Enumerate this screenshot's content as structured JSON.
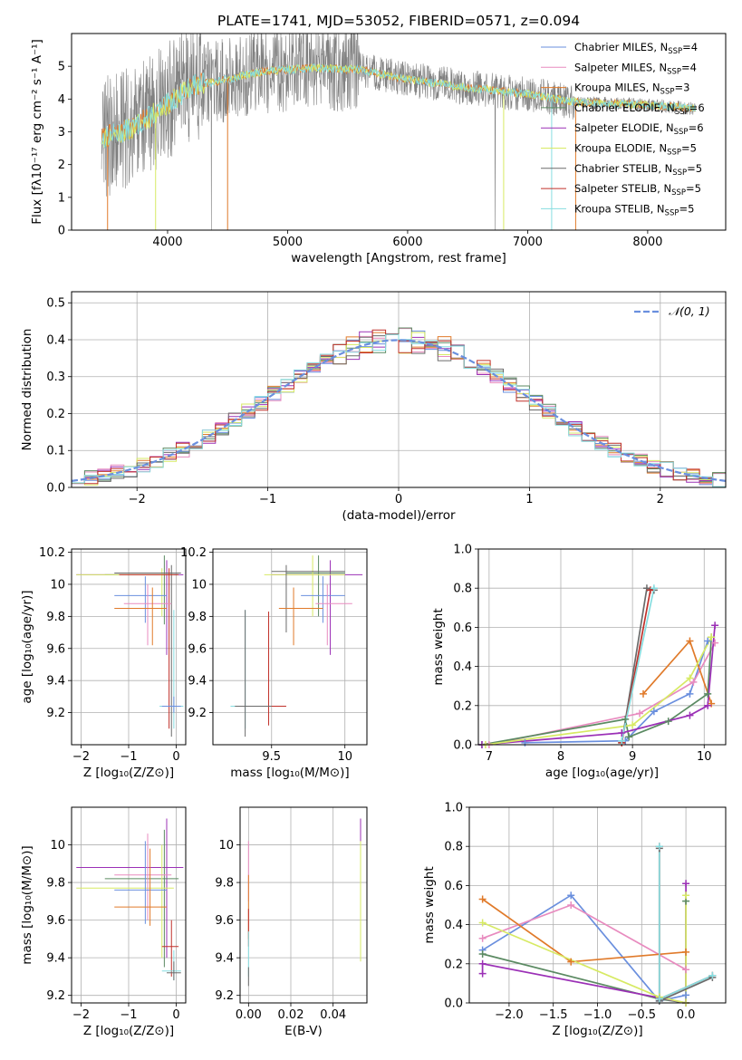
{
  "title": "PLATE=1741, MJD=53052, FIBERID=0571, z=0.094",
  "colors": {
    "Chabrier MILES": "#6a8fde",
    "Salpeter MILES": "#e88bbf",
    "Kroupa MILES": "#e07a2a",
    "Chabrier ELODIE": "#5b8a62",
    "Salpeter ELODIE": "#9b30b6",
    "Kroupa ELODIE": "#d7ea64",
    "Chabrier STELIB": "#6b6b6b",
    "Salpeter STELIB": "#c0302a",
    "Kroupa STELIB": "#86dde0",
    "gaussian": "#6a8fde",
    "spectrum_grey": "#808080"
  },
  "chart_data": [
    {
      "id": "spectrum",
      "type": "line",
      "xlabel": "wavelength [Angstrom, rest frame]",
      "ylabel": "Flux [fλ10⁻¹⁷ erg cm⁻² s⁻¹ A⁻¹]",
      "xlim": [
        3200,
        8650
      ],
      "ylim": [
        0,
        6
      ],
      "xticks": [
        4000,
        5000,
        6000,
        7000,
        8000
      ],
      "yticks": [
        0,
        1,
        2,
        3,
        4,
        5
      ],
      "legend": [
        "Chabrier MILES, NSSP=4",
        "Salpeter MILES, NSSP=4",
        "Kroupa MILES, NSSP=3",
        "Chabrier ELODIE, NSSP=6",
        "Salpeter ELODIE, NSSP=6",
        "Kroupa ELODIE, NSSP=5",
        "Chabrier STELIB, NSSP=5",
        "Salpeter STELIB, NSSP=5",
        "Kroupa STELIB, NSSP=5"
      ],
      "legend_keys": [
        "Chabrier MILES",
        "Salpeter MILES",
        "Kroupa MILES",
        "Chabrier ELODIE",
        "Salpeter ELODIE",
        "Kroupa ELODIE",
        "Chabrier STELIB",
        "Salpeter STELIB",
        "Kroupa STELIB"
      ],
      "legend_placement": "right",
      "data_range": [
        3450,
        8400
      ],
      "continuum": [
        [
          3450,
          2.8
        ],
        [
          3700,
          3.1
        ],
        [
          3950,
          3.7
        ],
        [
          4200,
          4.4
        ],
        [
          4500,
          4.6
        ],
        [
          4800,
          4.85
        ],
        [
          5200,
          4.95
        ],
        [
          5600,
          4.9
        ],
        [
          6000,
          4.6
        ],
        [
          6500,
          4.35
        ],
        [
          7000,
          4.15
        ],
        [
          7400,
          3.9
        ],
        [
          7800,
          3.85
        ],
        [
          8100,
          3.8
        ],
        [
          8400,
          3.7
        ]
      ]
    },
    {
      "id": "residuals",
      "type": "line",
      "xlabel": "(data-model)/error",
      "ylabel": "Normed distribution",
      "xlim": [
        -2.5,
        2.5
      ],
      "ylim": [
        0,
        0.53
      ],
      "xticks": [
        -2,
        -1,
        0,
        1,
        2
      ],
      "yticks": [
        0.0,
        0.1,
        0.2,
        0.3,
        0.4,
        0.5
      ],
      "grid": true,
      "legend": [
        "𝒩(0, 1)"
      ],
      "legend_placement": "top-right",
      "bin_width": 0.1
    },
    {
      "id": "z-age",
      "type": "scatter",
      "xlabel": "Z [log₁₀(Z/Z⊙)]",
      "ylabel": "age  [log₁₀(age/yr)]",
      "xlim": [
        -2.2,
        0.2
      ],
      "ylim": [
        9.0,
        10.22
      ],
      "xticks": [
        -2,
        -1,
        0
      ],
      "yticks": [
        9.2,
        9.4,
        9.6,
        9.8,
        10.0,
        10.2
      ],
      "grid": true
    },
    {
      "id": "mass-age",
      "type": "scatter",
      "xlabel": "mass [log₁₀(M/M⊙)]",
      "xlim": [
        9.1,
        10.15
      ],
      "ylim": [
        9.0,
        10.22
      ],
      "xticks": [
        9.5,
        10.0
      ],
      "yticks": [
        9.2,
        9.4,
        9.6,
        9.8,
        10.0,
        10.2
      ],
      "grid": true
    },
    {
      "id": "age-weight",
      "type": "line",
      "xlabel": "age  [log₁₀(age/yr)]",
      "ylabel": "mass weight",
      "xlim": [
        6.85,
        10.3
      ],
      "ylim": [
        0,
        1.0
      ],
      "xticks": [
        7,
        8,
        9,
        10
      ],
      "yticks": [
        0.0,
        0.2,
        0.4,
        0.6,
        0.8,
        1.0
      ],
      "grid": true,
      "series": [
        {
          "key": "Chabrier MILES",
          "points": [
            [
              7.5,
              0.01
            ],
            [
              8.9,
              0.02
            ],
            [
              9.3,
              0.17
            ],
            [
              9.8,
              0.26
            ],
            [
              10.05,
              0.53
            ]
          ]
        },
        {
          "key": "Salpeter MILES",
          "points": [
            [
              7.0,
              0.0
            ],
            [
              9.1,
              0.16
            ],
            [
              9.85,
              0.32
            ],
            [
              10.15,
              0.52
            ]
          ]
        },
        {
          "key": "Kroupa MILES",
          "points": [
            [
              9.15,
              0.26
            ],
            [
              9.8,
              0.53
            ],
            [
              10.1,
              0.21
            ]
          ]
        },
        {
          "key": "Chabrier ELODIE",
          "points": [
            [
              6.9,
              0.0
            ],
            [
              8.9,
              0.13
            ],
            [
              8.95,
              0.04
            ],
            [
              9.5,
              0.12
            ],
            [
              10.05,
              0.26
            ],
            [
              10.1,
              0.55
            ]
          ]
        },
        {
          "key": "Salpeter ELODIE",
          "points": [
            [
              6.9,
              0.0
            ],
            [
              8.85,
              0.06
            ],
            [
              9.8,
              0.15
            ],
            [
              10.05,
              0.2
            ],
            [
              10.15,
              0.61
            ]
          ]
        },
        {
          "key": "Kroupa ELODIE",
          "points": [
            [
              6.95,
              0.0
            ],
            [
              9.0,
              0.1
            ],
            [
              9.8,
              0.34
            ],
            [
              10.1,
              0.55
            ]
          ]
        },
        {
          "key": "Chabrier STELIB",
          "points": [
            [
              8.85,
              0.01
            ],
            [
              9.2,
              0.8
            ],
            [
              9.3,
              0.79
            ]
          ]
        },
        {
          "key": "Salpeter STELIB",
          "points": [
            [
              8.85,
              0.01
            ],
            [
              9.25,
              0.79
            ]
          ]
        },
        {
          "key": "Kroupa STELIB",
          "points": [
            [
              8.85,
              0.02
            ],
            [
              9.3,
              0.8
            ]
          ]
        }
      ]
    },
    {
      "id": "z-mass",
      "type": "scatter",
      "xlabel": "Z [log₁₀(Z/Z⊙)]",
      "ylabel": "mass [log₁₀(M/M⊙)]",
      "xlim": [
        -2.2,
        0.2
      ],
      "ylim": [
        9.16,
        10.2
      ],
      "xticks": [
        -2,
        -1,
        0
      ],
      "yticks": [
        9.2,
        9.4,
        9.6,
        9.8,
        10.0
      ],
      "grid": true
    },
    {
      "id": "ebv-mass",
      "type": "scatter",
      "xlabel": "E(B-V)",
      "xlim": [
        -0.004,
        0.056
      ],
      "ylim": [
        9.16,
        10.2
      ],
      "xticks": [
        0.0,
        0.02,
        0.04
      ],
      "xtick_labels": [
        "0.00",
        "0.02",
        "0.04"
      ],
      "yticks": [
        9.2,
        9.4,
        9.6,
        9.8,
        10.0
      ],
      "grid": true
    },
    {
      "id": "z-weight",
      "type": "line",
      "xlabel": "Z [log₁₀(Z/Z⊙)]",
      "ylabel": "mass weight",
      "xlim": [
        -2.45,
        0.45
      ],
      "ylim": [
        0,
        1.0
      ],
      "xticks": [
        -2.0,
        -1.5,
        -1.0,
        -0.5,
        0.0
      ],
      "xtick_labels": [
        "−2.0",
        "−1.5",
        "−1.0",
        "−0.5",
        "0.0"
      ],
      "yticks": [
        0.0,
        0.2,
        0.4,
        0.6,
        0.8,
        1.0
      ],
      "grid": true,
      "series": [
        {
          "key": "Chabrier MILES",
          "points": [
            [
              -2.3,
              0.27
            ],
            [
              -1.3,
              0.55
            ],
            [
              -0.3,
              0.01
            ],
            [
              0.0,
              0.04
            ]
          ]
        },
        {
          "key": "Salpeter MILES",
          "points": [
            [
              -2.3,
              0.33
            ],
            [
              -1.3,
              0.5
            ],
            [
              0.0,
              0.17
            ]
          ]
        },
        {
          "key": "Kroupa MILES",
          "points": [
            [
              -2.3,
              0.53
            ],
            [
              -1.3,
              0.21
            ],
            [
              0.0,
              0.26
            ]
          ]
        },
        {
          "key": "Chabrier ELODIE",
          "points": [
            [
              -2.3,
              0.25
            ],
            [
              -0.3,
              0.02
            ],
            [
              0.0,
              0.0
            ],
            [
              0.0,
              0.52
            ]
          ]
        },
        {
          "key": "Salpeter ELODIE",
          "points": [
            [
              -2.3,
              0.15
            ],
            [
              -2.3,
              0.2
            ],
            [
              0.0,
              0.0
            ],
            [
              0.0,
              0.61
            ]
          ]
        },
        {
          "key": "Kroupa ELODIE",
          "points": [
            [
              -2.3,
              0.41
            ],
            [
              -0.3,
              0.03
            ],
            [
              0.0,
              0.0
            ],
            [
              0.0,
              0.55
            ]
          ]
        },
        {
          "key": "Chabrier STELIB",
          "points": [
            [
              -0.3,
              0.79
            ],
            [
              -0.3,
              0.01
            ],
            [
              0.3,
              0.13
            ]
          ]
        },
        {
          "key": "Salpeter STELIB",
          "points": [
            [
              -0.3,
              0.8
            ],
            [
              -0.3,
              0.02
            ],
            [
              0.3,
              0.14
            ]
          ]
        },
        {
          "key": "Kroupa STELIB",
          "points": [
            [
              -0.3,
              0.8
            ],
            [
              -0.3,
              0.02
            ],
            [
              0.3,
              0.14
            ]
          ]
        }
      ]
    }
  ]
}
